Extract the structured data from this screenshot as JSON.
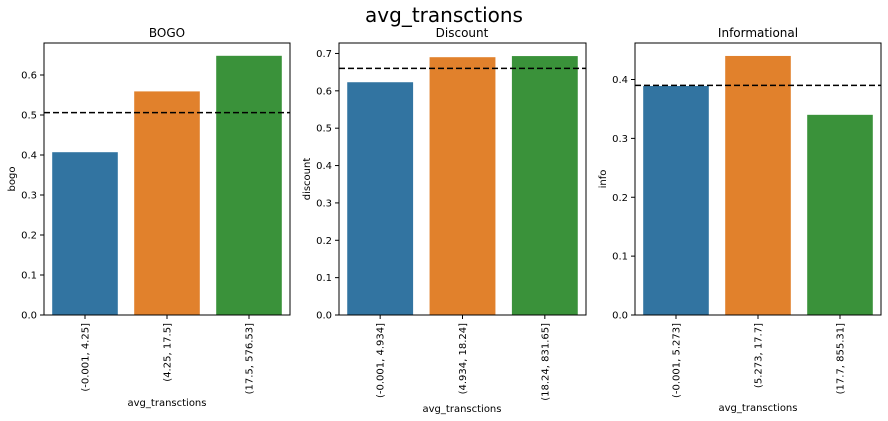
{
  "figure_title": "avg_transctions",
  "colors": {
    "bar_palette": [
      "#3274a1",
      "#e1812c",
      "#3a923a"
    ],
    "ref_line": "#000000",
    "axis": "#000000"
  },
  "chart_data": [
    {
      "type": "bar",
      "title": "BOGO",
      "xlabel": "avg_transctions",
      "ylabel": "bogo",
      "categories": [
        "(-0.001, 4.25]",
        "(4.25, 17.5]",
        "(17.5, 576.53]"
      ],
      "values": [
        0.407,
        0.559,
        0.648
      ],
      "reference_line": 0.506,
      "ylim": [
        0,
        0.68
      ],
      "yticks": [
        0.0,
        0.1,
        0.2,
        0.3,
        0.4,
        0.5,
        0.6
      ],
      "ytick_labels": [
        "0.0",
        "0.1",
        "0.2",
        "0.3",
        "0.4",
        "0.5",
        "0.6"
      ]
    },
    {
      "type": "bar",
      "title": "Discount",
      "xlabel": "avg_transctions",
      "ylabel": "discount",
      "categories": [
        "(-0.001, 4.934]",
        "(4.934, 18.24]",
        "(18.24, 831.65]"
      ],
      "values": [
        0.623,
        0.69,
        0.693
      ],
      "reference_line": 0.66,
      "ylim": [
        0,
        0.728
      ],
      "yticks": [
        0.0,
        0.1,
        0.2,
        0.3,
        0.4,
        0.5,
        0.6,
        0.7
      ],
      "ytick_labels": [
        "0.0",
        "0.1",
        "0.2",
        "0.3",
        "0.4",
        "0.5",
        "0.6",
        "0.7"
      ]
    },
    {
      "type": "bar",
      "title": "Informational",
      "xlabel": "avg_transctions",
      "ylabel": "info",
      "categories": [
        "(-0.001, 5.273]",
        "(5.273, 17.7]",
        "(17.7, 855.31]"
      ],
      "values": [
        0.389,
        0.44,
        0.34
      ],
      "reference_line": 0.39,
      "ylim": [
        0,
        0.462
      ],
      "yticks": [
        0.0,
        0.1,
        0.2,
        0.3,
        0.4
      ],
      "ytick_labels": [
        "0.0",
        "0.1",
        "0.2",
        "0.3",
        "0.4"
      ]
    }
  ]
}
